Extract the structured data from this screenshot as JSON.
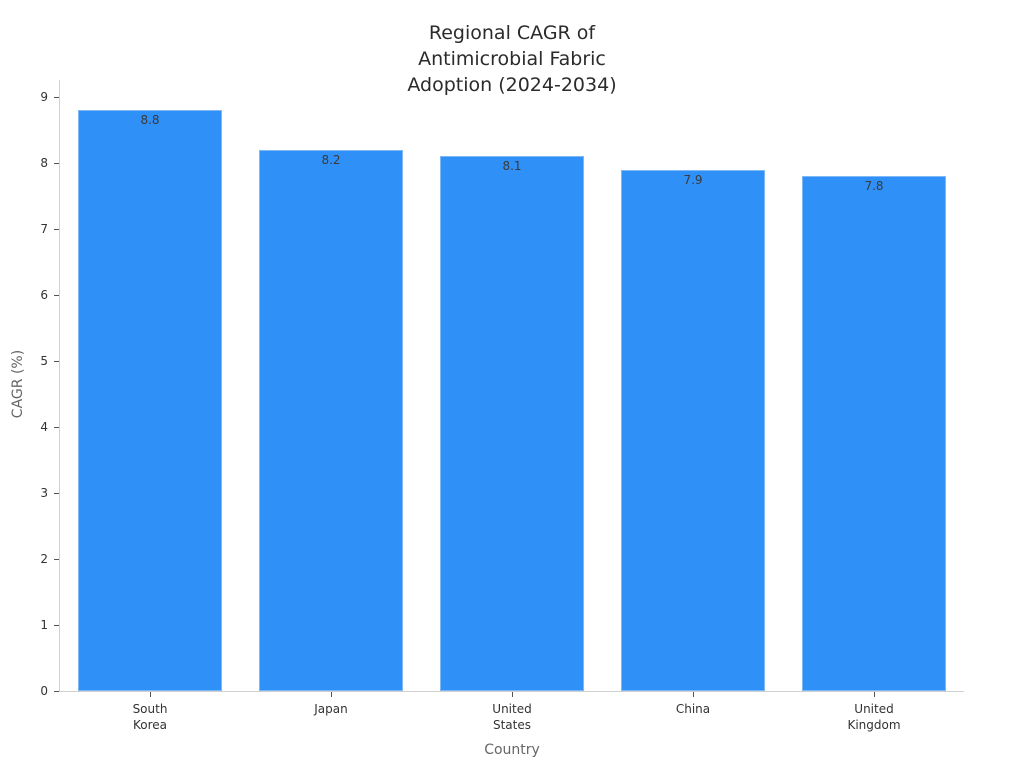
{
  "chart_data": {
    "type": "bar",
    "title": "Regional CAGR of\nAntimicrobial Fabric\nAdoption (2024-2034)",
    "xlabel": "Country",
    "ylabel": "CAGR (%)",
    "categories": [
      "South\nKorea",
      "Japan",
      "United\nStates",
      "China",
      "United\nKingdom"
    ],
    "values": [
      8.8,
      8.2,
      8.1,
      7.9,
      7.8
    ],
    "data_labels": [
      "8.8",
      "8.2",
      "8.1",
      "7.9",
      "7.8"
    ],
    "ylim": [
      0,
      9.25
    ],
    "yticks": [
      "0",
      "1",
      "2",
      "3",
      "4",
      "5",
      "6",
      "7",
      "8",
      "9"
    ],
    "bar_color": "#2f91f8",
    "grid": false,
    "legend": null
  }
}
